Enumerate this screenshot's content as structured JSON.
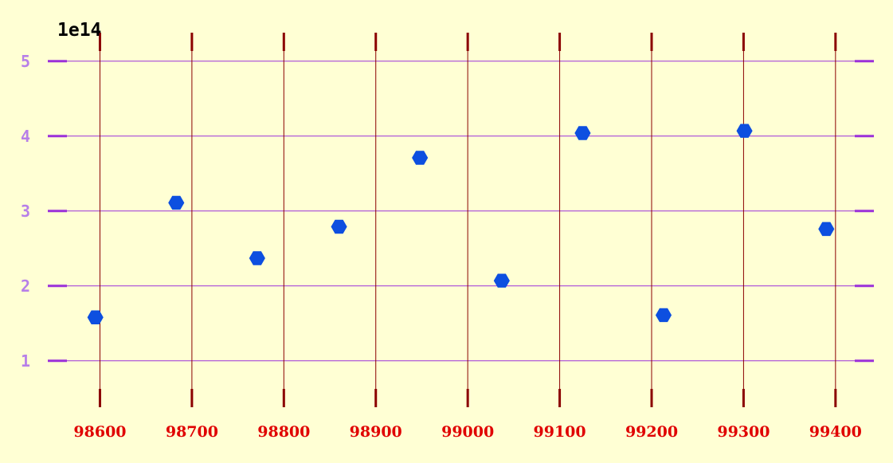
{
  "chart_data": {
    "type": "scatter",
    "title": "",
    "xlabel": "",
    "ylabel": "",
    "y_offset_label": "1e14",
    "x": [
      98595,
      98683,
      98771,
      98860,
      98948,
      99037,
      99125,
      99213,
      99301,
      99390
    ],
    "y": [
      1.58,
      3.11,
      2.37,
      2.79,
      3.71,
      2.07,
      4.04,
      1.61,
      4.07,
      2.76
    ],
    "xlim": [
      98545,
      99440
    ],
    "ylim": [
      0.37,
      5.37
    ],
    "xticks": [
      98600,
      98700,
      98800,
      98900,
      99000,
      99100,
      99200,
      99300,
      99400
    ],
    "xtick_labels": [
      "98600",
      "98700",
      "98800",
      "98900",
      "99000",
      "99100",
      "99200",
      "99300",
      "99400"
    ],
    "yticks": [
      1,
      2,
      3,
      4,
      5
    ],
    "ytick_labels": [
      "1",
      "2",
      "3",
      "4",
      "5"
    ],
    "grid": true,
    "legend": "none",
    "colors": {
      "background": "#ffffd4",
      "marker": "#0d4fe0",
      "vertical_grid": "#8b0000",
      "horizontal_grid": "#9b30d9",
      "xtick_label": "#e00000",
      "ytick_label": "#b77fe8"
    },
    "marker_shape": "hexagon"
  }
}
